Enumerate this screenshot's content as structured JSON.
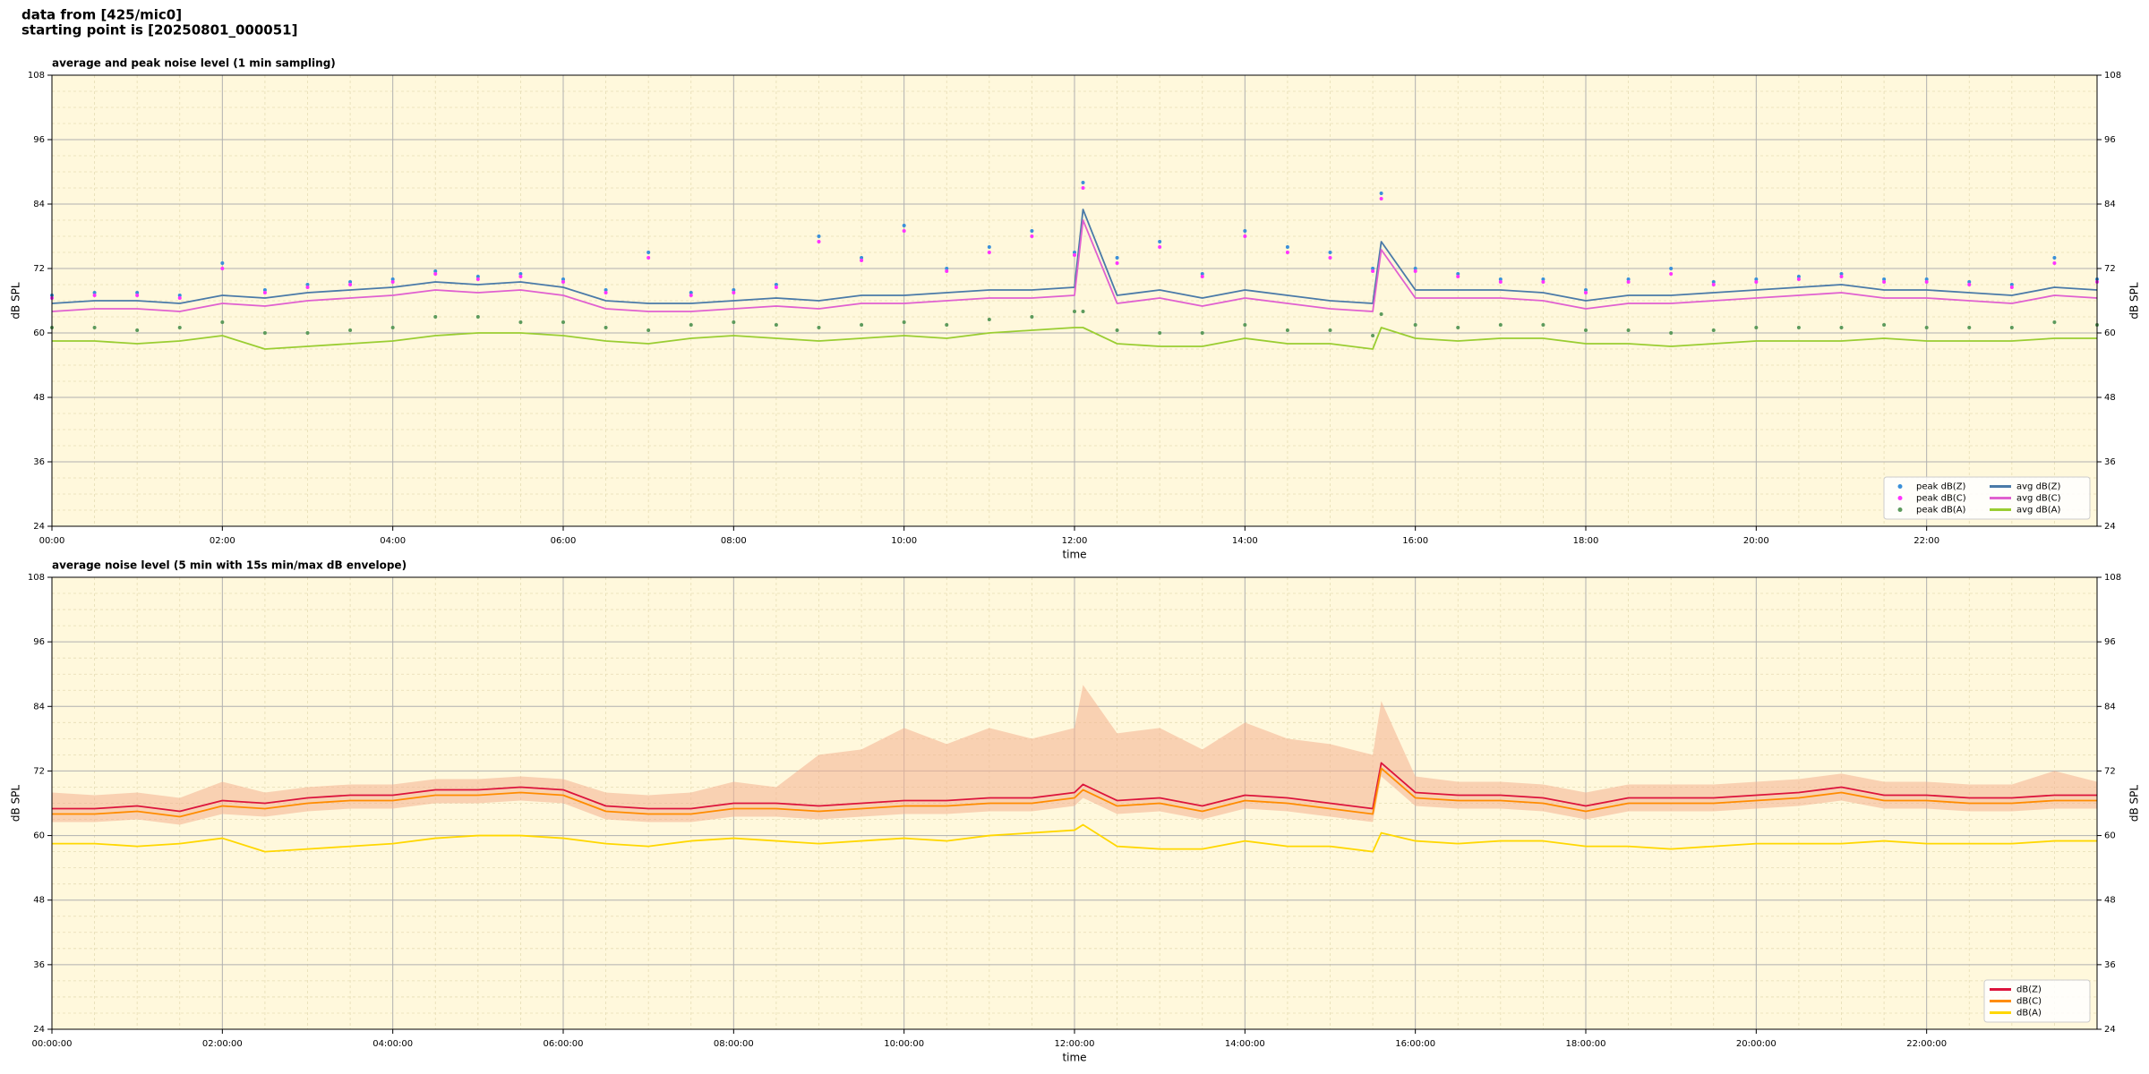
{
  "header": {
    "line1": "data from [425/mic0]",
    "line2": "starting point is [20250801_000051]"
  },
  "chart_data": [
    {
      "type": "line",
      "title": "average and peak noise level (1 min sampling)",
      "xlabel": "time",
      "ylabel": "dB SPL",
      "background": "#fff8dc",
      "grid": true,
      "legend": "lower right",
      "legend_columns": 2,
      "x": [
        0,
        0.5,
        1,
        1.5,
        2,
        2.5,
        3,
        3.5,
        4,
        4.5,
        5,
        5.5,
        6,
        6.5,
        7,
        7.5,
        8,
        8.5,
        9,
        9.5,
        10,
        10.5,
        11,
        11.5,
        12,
        12.1,
        12.5,
        13,
        13.5,
        14,
        14.5,
        15,
        15.5,
        15.6,
        16,
        16.5,
        17,
        17.5,
        18,
        18.5,
        19,
        19.5,
        20,
        20.5,
        21,
        21.5,
        22,
        22.5,
        23,
        23.5,
        24
      ],
      "xlim": [
        0,
        24
      ],
      "xticks": [
        {
          "value": 0,
          "label": "00:00"
        },
        {
          "value": 2,
          "label": "02:00"
        },
        {
          "value": 4,
          "label": "04:00"
        },
        {
          "value": 6,
          "label": "06:00"
        },
        {
          "value": 8,
          "label": "08:00"
        },
        {
          "value": 10,
          "label": "10:00"
        },
        {
          "value": 12,
          "label": "12:00"
        },
        {
          "value": 14,
          "label": "14:00"
        },
        {
          "value": 16,
          "label": "16:00"
        },
        {
          "value": 18,
          "label": "18:00"
        },
        {
          "value": 20,
          "label": "20:00"
        },
        {
          "value": 22,
          "label": "22:00"
        }
      ],
      "ylim": [
        24,
        108
      ],
      "yticks": [
        24,
        36,
        48,
        60,
        72,
        84,
        96,
        108
      ],
      "series": [
        {
          "name": "peak dB(Z)",
          "style": "markers",
          "color": "#3a8fd9",
          "values": [
            67,
            67.5,
            67.5,
            67,
            73,
            68,
            69,
            69.5,
            70,
            71.5,
            70.5,
            71,
            70,
            68,
            75,
            67.5,
            68,
            69,
            78,
            74,
            80,
            72,
            76,
            79,
            75,
            88,
            74,
            77,
            71,
            79,
            76,
            75,
            72,
            86,
            72,
            71,
            70,
            70,
            68,
            70,
            72,
            69.5,
            70,
            70.5,
            71,
            70,
            70,
            69.5,
            69,
            74,
            70
          ]
        },
        {
          "name": "peak dB(C)",
          "style": "markers",
          "color": "#ff33ff",
          "values": [
            66.5,
            67,
            67,
            66.5,
            72,
            67.5,
            68.5,
            69,
            69.5,
            71,
            70,
            70.5,
            69.5,
            67.5,
            74,
            67,
            67.5,
            68.5,
            77,
            73.5,
            79,
            71.5,
            75,
            78,
            74.5,
            87,
            73,
            76,
            70.5,
            78,
            75,
            74,
            71.5,
            85,
            71.5,
            70.5,
            69.5,
            69.5,
            67.5,
            69.5,
            71,
            69,
            69.5,
            70,
            70.5,
            69.5,
            69.5,
            69,
            68.5,
            73,
            69.5
          ]
        },
        {
          "name": "peak dB(A)",
          "style": "markers",
          "color": "#5c9a5c",
          "values": [
            61,
            61,
            60.5,
            61,
            62,
            60,
            60,
            60.5,
            61,
            63,
            63,
            62,
            62,
            61,
            60.5,
            61.5,
            62,
            61.5,
            61,
            61.5,
            62,
            61.5,
            62.5,
            63,
            64,
            64,
            60.5,
            60,
            60,
            61.5,
            60.5,
            60.5,
            59.5,
            63.5,
            61.5,
            61,
            61.5,
            61.5,
            60.5,
            60.5,
            60,
            60.5,
            61,
            61,
            61,
            61.5,
            61,
            61,
            61,
            62,
            61.5
          ]
        },
        {
          "name": "avg dB(Z)",
          "style": "line",
          "color": "#4a7aa8",
          "values": [
            65.5,
            66,
            66,
            65.5,
            67,
            66.5,
            67.5,
            68,
            68.5,
            69.5,
            69,
            69.5,
            68.5,
            66,
            65.5,
            65.5,
            66,
            66.5,
            66,
            67,
            67,
            67.5,
            68,
            68,
            68.5,
            83,
            67,
            68,
            66.5,
            68,
            67,
            66,
            65.5,
            77,
            68,
            68,
            68,
            67.5,
            66,
            67,
            67,
            67.5,
            68,
            68.5,
            69,
            68,
            68,
            67.5,
            67,
            68.5,
            68
          ]
        },
        {
          "name": "avg dB(C)",
          "style": "line",
          "color": "#e060d0",
          "values": [
            64,
            64.5,
            64.5,
            64,
            65.5,
            65,
            66,
            66.5,
            67,
            68,
            67.5,
            68,
            67,
            64.5,
            64,
            64,
            64.5,
            65,
            64.5,
            65.5,
            65.5,
            66,
            66.5,
            66.5,
            67,
            81,
            65.5,
            66.5,
            65,
            66.5,
            65.5,
            64.5,
            64,
            75.5,
            66.5,
            66.5,
            66.5,
            66,
            64.5,
            65.5,
            65.5,
            66,
            66.5,
            67,
            67.5,
            66.5,
            66.5,
            66,
            65.5,
            67,
            66.5
          ]
        },
        {
          "name": "avg dB(A)",
          "style": "line",
          "color": "#9acd32",
          "values": [
            58.5,
            58.5,
            58,
            58.5,
            59.5,
            57,
            57.5,
            58,
            58.5,
            59.5,
            60,
            60,
            59.5,
            58.5,
            58,
            59,
            59.5,
            59,
            58.5,
            59,
            59.5,
            59,
            60,
            60.5,
            61,
            61,
            58,
            57.5,
            57.5,
            59,
            58,
            58,
            57,
            61,
            59,
            58.5,
            59,
            59,
            58,
            58,
            57.5,
            58,
            58.5,
            58.5,
            58.5,
            59,
            58.5,
            58.5,
            58.5,
            59,
            59
          ]
        }
      ]
    },
    {
      "type": "line",
      "title": "average noise level (5 min with 15s min/max dB envelope)",
      "xlabel": "time",
      "ylabel": "dB SPL",
      "background": "#fff8dc",
      "grid": true,
      "legend": "lower right",
      "legend_columns": 1,
      "x": [
        0,
        0.5,
        1,
        1.5,
        2,
        2.5,
        3,
        3.5,
        4,
        4.5,
        5,
        5.5,
        6,
        6.5,
        7,
        7.5,
        8,
        8.5,
        9,
        9.5,
        10,
        10.5,
        11,
        11.5,
        12,
        12.1,
        12.5,
        13,
        13.5,
        14,
        14.5,
        15,
        15.5,
        15.6,
        16,
        16.5,
        17,
        17.5,
        18,
        18.5,
        19,
        19.5,
        20,
        20.5,
        21,
        21.5,
        22,
        22.5,
        23,
        23.5,
        24
      ],
      "xlim": [
        0,
        24
      ],
      "xticks": [
        {
          "value": 0,
          "label": "00:00:00"
        },
        {
          "value": 2,
          "label": "02:00:00"
        },
        {
          "value": 4,
          "label": "04:00:00"
        },
        {
          "value": 6,
          "label": "06:00:00"
        },
        {
          "value": 8,
          "label": "08:00:00"
        },
        {
          "value": 10,
          "label": "10:00:00"
        },
        {
          "value": 12,
          "label": "12:00:00"
        },
        {
          "value": 14,
          "label": "14:00:00"
        },
        {
          "value": 16,
          "label": "16:00:00"
        },
        {
          "value": 18,
          "label": "18:00:00"
        },
        {
          "value": 20,
          "label": "20:00:00"
        },
        {
          "value": 22,
          "label": "22:00:00"
        }
      ],
      "ylim": [
        24,
        108
      ],
      "yticks": [
        24,
        36,
        48,
        60,
        72,
        84,
        96,
        108
      ],
      "envelope": {
        "color": "#f4b090",
        "max": [
          68,
          67.5,
          68,
          67,
          70,
          68,
          69,
          69.5,
          69.5,
          70.5,
          70.5,
          71,
          70.5,
          68,
          67.5,
          68,
          70,
          69,
          75,
          76,
          80,
          77,
          80,
          78,
          80,
          88,
          79,
          80,
          76,
          81,
          78,
          77,
          75,
          85,
          71,
          70,
          70,
          69.5,
          68,
          69.5,
          69.5,
          69.5,
          70,
          70.5,
          71.5,
          70,
          70,
          69.5,
          69.5,
          72,
          70
        ],
        "min": [
          62.5,
          62.5,
          63,
          62,
          64,
          63.5,
          64.5,
          65,
          65,
          66,
          66,
          66.5,
          66,
          63,
          62.5,
          62.5,
          63.5,
          63.5,
          63,
          63.5,
          64,
          64,
          64.5,
          64.5,
          65.5,
          67,
          64,
          64.5,
          63,
          65,
          64.5,
          63.5,
          62.5,
          71,
          65.5,
          65,
          65,
          64.5,
          63,
          64.5,
          64.5,
          64.5,
          65,
          65.5,
          66.5,
          65,
          65,
          64.5,
          64.5,
          65,
          65
        ]
      },
      "series": [
        {
          "name": "dB(Z)",
          "style": "line",
          "color": "#dc143c",
          "values": [
            65,
            65,
            65.5,
            64.5,
            66.5,
            66,
            67,
            67.5,
            67.5,
            68.5,
            68.5,
            69,
            68.5,
            65.5,
            65,
            65,
            66,
            66,
            65.5,
            66,
            66.5,
            66.5,
            67,
            67,
            68,
            69.5,
            66.5,
            67,
            65.5,
            67.5,
            67,
            66,
            65,
            73.5,
            68,
            67.5,
            67.5,
            67,
            65.5,
            67,
            67,
            67,
            67.5,
            68,
            69,
            67.5,
            67.5,
            67,
            67,
            67.5,
            67.5
          ]
        },
        {
          "name": "dB(C)",
          "style": "line",
          "color": "#ff8c00",
          "values": [
            64,
            64,
            64.5,
            63.5,
            65.5,
            65,
            66,
            66.5,
            66.5,
            67.5,
            67.5,
            68,
            67.5,
            64.5,
            64,
            64,
            65,
            65,
            64.5,
            65,
            65.5,
            65.5,
            66,
            66,
            67,
            68.5,
            65.5,
            66,
            64.5,
            66.5,
            66,
            65,
            64,
            72.5,
            67,
            66.5,
            66.5,
            66,
            64.5,
            66,
            66,
            66,
            66.5,
            67,
            68,
            66.5,
            66.5,
            66,
            66,
            66.5,
            66.5
          ]
        },
        {
          "name": "dB(A)",
          "style": "line",
          "color": "#ffd700",
          "values": [
            58.5,
            58.5,
            58,
            58.5,
            59.5,
            57,
            57.5,
            58,
            58.5,
            59.5,
            60,
            60,
            59.5,
            58.5,
            58,
            59,
            59.5,
            59,
            58.5,
            59,
            59.5,
            59,
            60,
            60.5,
            61,
            62,
            58,
            57.5,
            57.5,
            59,
            58,
            58,
            57,
            60.5,
            59,
            58.5,
            59,
            59,
            58,
            58,
            57.5,
            58,
            58.5,
            58.5,
            58.5,
            59,
            58.5,
            58.5,
            58.5,
            59,
            59
          ]
        }
      ]
    }
  ]
}
